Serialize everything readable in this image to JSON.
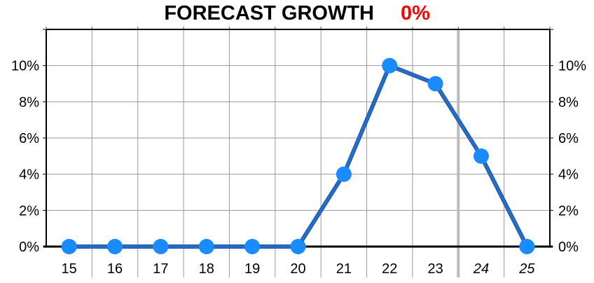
{
  "chart_data": {
    "type": "line",
    "title": "FORECAST GROWTH",
    "title_value": "0%",
    "categories": [
      "15",
      "16",
      "17",
      "18",
      "19",
      "20",
      "21",
      "22",
      "23",
      "24",
      "25"
    ],
    "italic_categories": [
      "24",
      "25"
    ],
    "series": [
      {
        "values": [
          0,
          0,
          0,
          0,
          0,
          0,
          4,
          10,
          9,
          5,
          0
        ]
      }
    ],
    "ylim": [
      0,
      12
    ],
    "yticks": [
      0,
      2,
      4,
      6,
      8,
      10
    ],
    "ytick_labels": [
      "0%",
      "2%",
      "4%",
      "6%",
      "8%",
      "10%"
    ],
    "grid": true,
    "forecast_divider_after": "23",
    "colors": {
      "line": "#1f6fd6",
      "marker": "#1a8cff",
      "title_value": "#ff0000",
      "grid": "#999999",
      "divider": "#bbbbbb"
    }
  }
}
